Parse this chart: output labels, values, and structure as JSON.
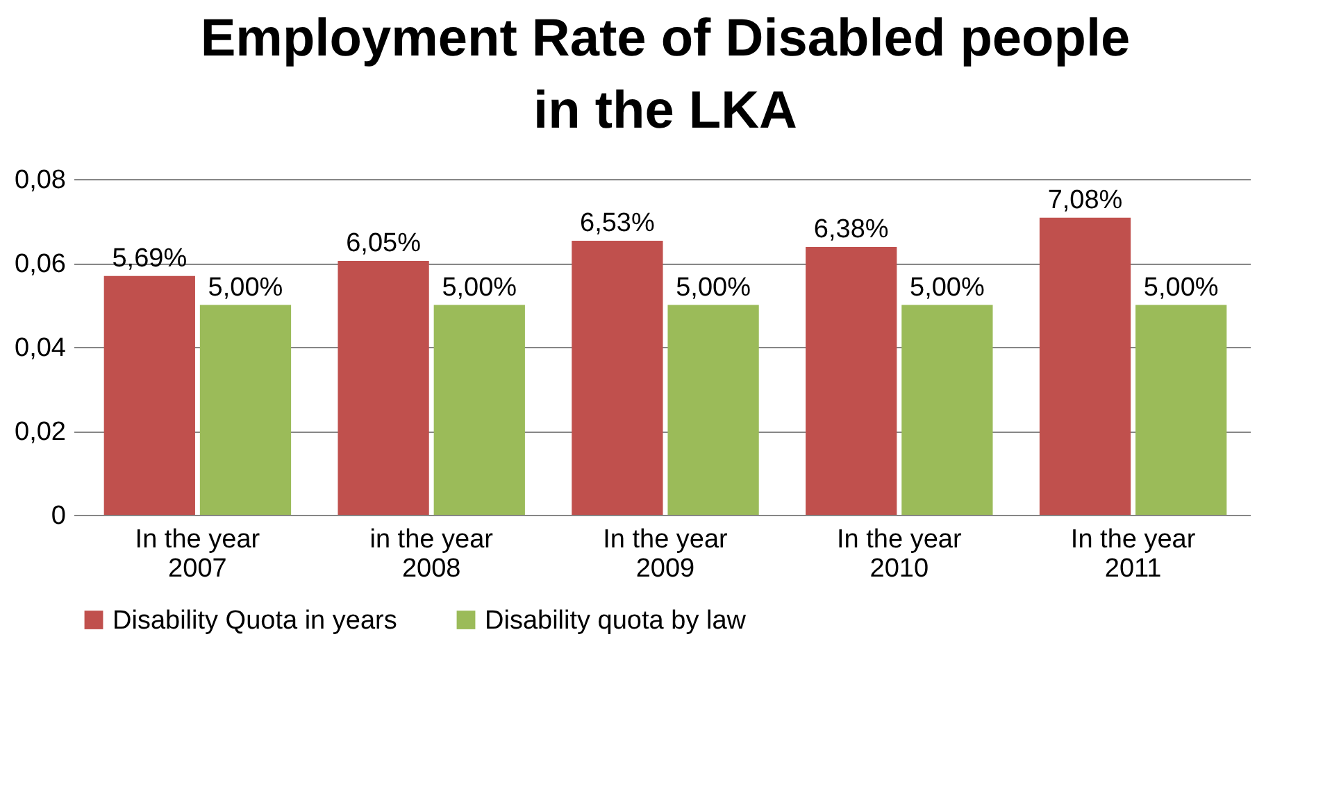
{
  "chart_data": {
    "type": "bar",
    "title": "Employment Rate of Disabled people in the LKA",
    "categories": [
      "In the year 2007",
      "in the year 2008",
      "In the year 2009",
      "In the year 2010",
      "In the year 2011"
    ],
    "series": [
      {
        "name": "Disability Quota in years",
        "color": "#c0504d",
        "values": [
          0.0569,
          0.0605,
          0.0653,
          0.0638,
          0.0708
        ],
        "value_labels": [
          "5,69%",
          "6,05%",
          "6,53%",
          "6,38%",
          "7,08%"
        ]
      },
      {
        "name": "Disability quota by law",
        "color": "#9bbb59",
        "values": [
          0.05,
          0.05,
          0.05,
          0.05,
          0.05
        ],
        "value_labels": [
          "5,00%",
          "5,00%",
          "5,00%",
          "5,00%",
          "5,00%"
        ]
      }
    ],
    "ylim": [
      0,
      0.08
    ],
    "yticks": [
      0,
      {
        "value": 0.02,
        "label": "0,02"
      },
      {
        "value": 0.04,
        "label": "0,04"
      },
      {
        "value": 0.06,
        "label": "0,06"
      },
      {
        "value": 0.08,
        "label": "0,08"
      }
    ],
    "grid": "y",
    "legend": "bottom"
  }
}
